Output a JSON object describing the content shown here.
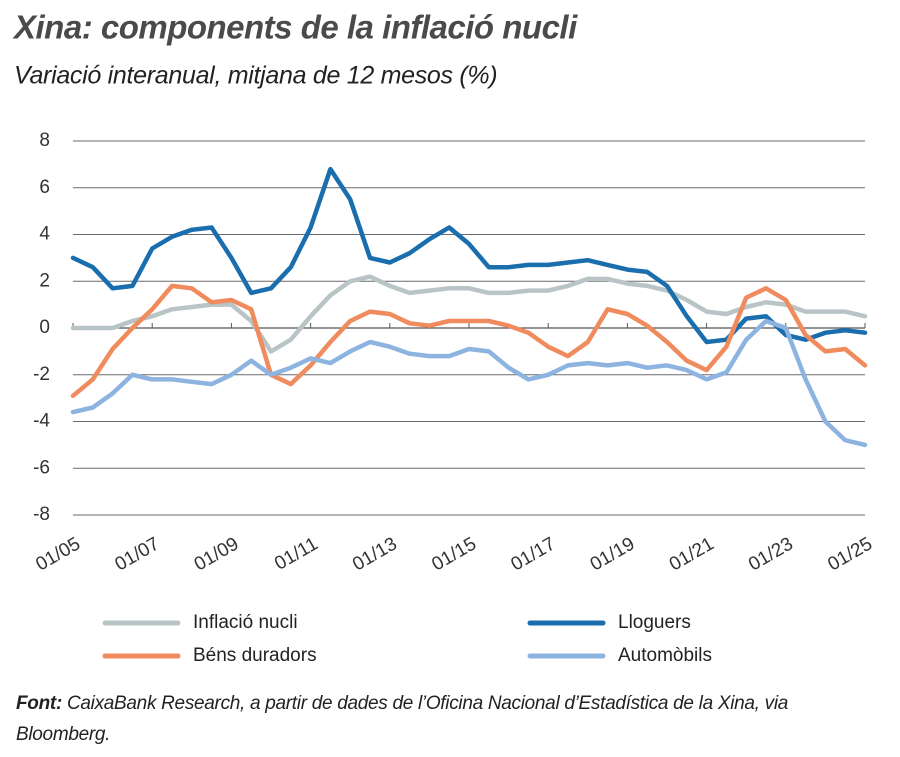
{
  "chart_data": {
    "type": "line",
    "title": "Xina: components de la inflació nucli",
    "subtitle": "Variació interanual, mitjana de 12 mesos (%)",
    "source_label": "Font:",
    "source": "CaixaBank Research, a partir de dades de l’Oficina Nacional d’Estadística de la Xina, via Bloomberg.",
    "categories": [
      "01/05",
      null,
      null,
      null,
      "01/07",
      null,
      null,
      null,
      "01/09",
      null,
      null,
      null,
      "01/11",
      null,
      null,
      null,
      "01/13",
      null,
      null,
      null,
      "01/15",
      null,
      null,
      null,
      "01/17",
      null,
      null,
      null,
      "01/19",
      null,
      null,
      null,
      "01/21",
      null,
      null,
      null,
      "01/23",
      null,
      null,
      null,
      "01/25"
    ],
    "series": [
      {
        "name": "Inflació nucli",
        "color": "#b9c4c7",
        "values": [
          0,
          0,
          0,
          0.3,
          0.5,
          0.8,
          0.9,
          1.0,
          1.0,
          0.3,
          -1.0,
          -0.5,
          0.5,
          1.4,
          2.0,
          2.2,
          1.8,
          1.5,
          1.6,
          1.7,
          1.7,
          1.5,
          1.5,
          1.6,
          1.6,
          1.8,
          2.1,
          2.1,
          1.9,
          1.8,
          1.6,
          1.2,
          0.7,
          0.6,
          0.9,
          1.1,
          1.0,
          0.7,
          0.7,
          0.7,
          0.5
        ]
      },
      {
        "name": "Lloguers",
        "color": "#1b6eae",
        "values": [
          3.0,
          2.6,
          1.7,
          1.8,
          3.4,
          3.9,
          4.2,
          4.3,
          3.0,
          1.5,
          1.7,
          2.6,
          4.3,
          6.8,
          5.5,
          3.0,
          2.8,
          3.2,
          3.8,
          4.3,
          3.6,
          2.6,
          2.6,
          2.7,
          2.7,
          2.8,
          2.9,
          2.7,
          2.5,
          2.4,
          1.8,
          0.5,
          -0.6,
          -0.5,
          0.4,
          0.5,
          -0.3,
          -0.5,
          -0.2,
          -0.1,
          -0.2
        ]
      },
      {
        "name": "Béns duradors",
        "color": "#ef8b5c",
        "values": [
          -2.9,
          -2.2,
          -0.9,
          0.0,
          0.8,
          1.8,
          1.7,
          1.1,
          1.2,
          0.8,
          -2.0,
          -2.4,
          -1.6,
          -0.6,
          0.3,
          0.7,
          0.6,
          0.2,
          0.1,
          0.3,
          0.3,
          0.3,
          0.1,
          -0.2,
          -0.8,
          -1.2,
          -0.6,
          0.8,
          0.6,
          0.1,
          -0.6,
          -1.4,
          -1.8,
          -0.8,
          1.3,
          1.7,
          1.2,
          -0.3,
          -1.0,
          -0.9,
          -1.6
        ]
      },
      {
        "name": "Automòbils",
        "color": "#8db3e0",
        "values": [
          -3.6,
          -3.4,
          -2.8,
          -2.0,
          -2.2,
          -2.2,
          -2.3,
          -2.4,
          -2.0,
          -1.4,
          -2.0,
          -1.7,
          -1.3,
          -1.5,
          -1.0,
          -0.6,
          -0.8,
          -1.1,
          -1.2,
          -1.2,
          -0.9,
          -1.0,
          -1.7,
          -2.2,
          -2.0,
          -1.6,
          -1.5,
          -1.6,
          -1.5,
          -1.7,
          -1.6,
          -1.8,
          -2.2,
          -1.9,
          -0.5,
          0.3,
          0.0,
          -2.2,
          -4.0,
          -4.8,
          -5.0
        ]
      }
    ],
    "ylim": [
      -8,
      8
    ],
    "yticks": [
      -8,
      -6,
      -4,
      -2,
      0,
      2,
      4,
      6,
      8
    ],
    "grid": true,
    "legend": "bottom"
  }
}
